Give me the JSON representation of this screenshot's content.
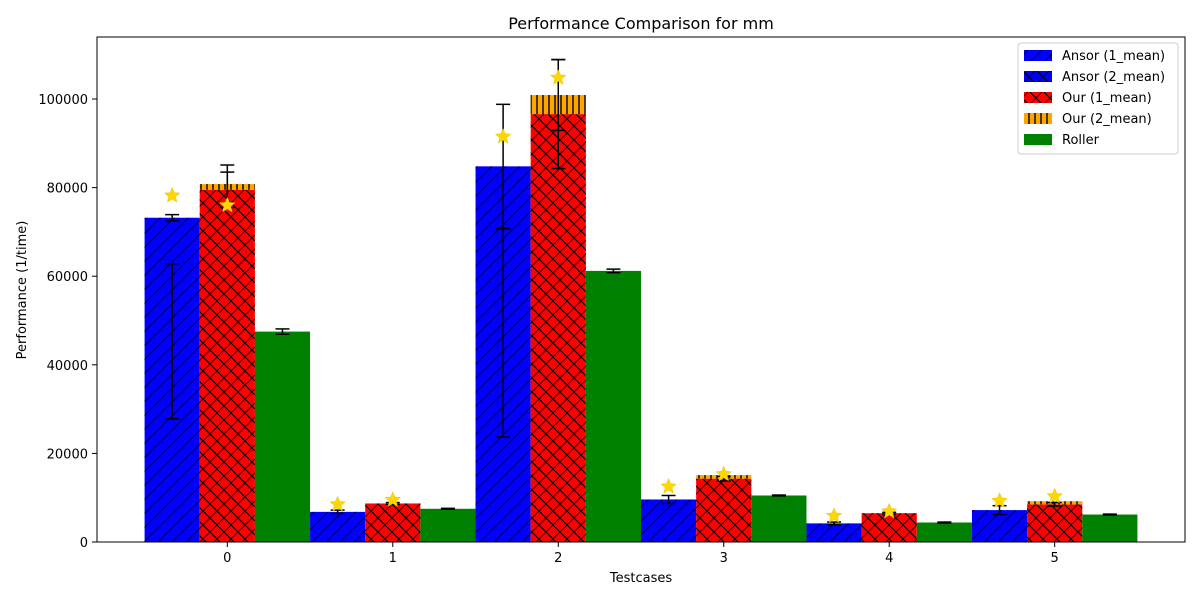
{
  "chart_data": {
    "type": "bar",
    "title": "Performance Comparison for mm",
    "xlabel": "Testcases",
    "ylabel": "Performance (1/time)",
    "categories": [
      "0",
      "1",
      "2",
      "3",
      "4",
      "5"
    ],
    "ylim": [
      0,
      114000
    ],
    "yticks": [
      0,
      20000,
      40000,
      60000,
      80000,
      100000
    ],
    "legend_position": "top-right",
    "grid": false,
    "series": [
      {
        "name": "Ansor (1_mean)",
        "color": "#0000ff",
        "hatch": "diagonal",
        "group": 0,
        "stack": 0,
        "values": [
          73200,
          6800,
          84800,
          9600,
          4200,
          7200
        ],
        "err": [
          700,
          400,
          14000,
          900,
          300,
          1000
        ]
      },
      {
        "name": "Ansor (2_mean)",
        "color": "#0000ff",
        "hatch": "cross-diagonal",
        "group": 0,
        "stack": 1,
        "values": [
          0,
          0,
          0,
          0,
          0,
          0
        ],
        "err": [
          17500,
          0,
          23500,
          0,
          0,
          0
        ],
        "center": [
          45300,
          0,
          47200,
          0,
          0,
          0
        ]
      },
      {
        "name": "Our (1_mean)",
        "color": "#ff0000",
        "hatch": "crosshatch",
        "group": 1,
        "stack": 0,
        "values": [
          79500,
          8700,
          96600,
          14300,
          6500,
          8500
        ],
        "err": [
          4000,
          200,
          12300,
          500,
          200,
          400
        ]
      },
      {
        "name": "Our (2_mean)",
        "color": "#ffa500",
        "hatch": "vertical",
        "group": 1,
        "stack": 1,
        "values": [
          1300,
          0,
          4300,
          800,
          0,
          700
        ],
        "err": [
          4300,
          0,
          8000,
          0,
          0,
          0
        ]
      },
      {
        "name": "Roller",
        "color": "#008000",
        "hatch": "none",
        "group": 2,
        "stack": 0,
        "values": [
          47500,
          7500,
          61200,
          10500,
          4400,
          6200
        ],
        "err": [
          600,
          100,
          400,
          100,
          100,
          100
        ]
      }
    ],
    "best_markers": {
      "color": "#ffd700",
      "points": [
        {
          "category": "0",
          "group": 0,
          "value": 78200
        },
        {
          "category": "0",
          "group": 1,
          "value": 76000
        },
        {
          "category": "1",
          "group": 0,
          "value": 8500
        },
        {
          "category": "1",
          "group": 1,
          "value": 9500
        },
        {
          "category": "2",
          "group": 0,
          "value": 91500
        },
        {
          "category": "2",
          "group": 1,
          "value": 104800
        },
        {
          "category": "3",
          "group": 0,
          "value": 12500
        },
        {
          "category": "3",
          "group": 1,
          "value": 15300
        },
        {
          "category": "4",
          "group": 0,
          "value": 5900
        },
        {
          "category": "4",
          "group": 1,
          "value": 6900
        },
        {
          "category": "5",
          "group": 0,
          "value": 9300
        },
        {
          "category": "5",
          "group": 1,
          "value": 10300
        }
      ]
    }
  }
}
